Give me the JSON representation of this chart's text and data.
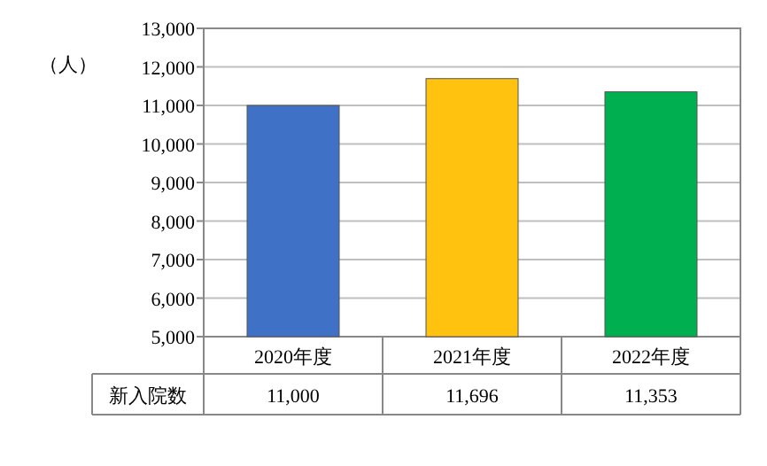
{
  "chart_data": {
    "type": "bar",
    "ylabel": "（人）",
    "categories": [
      "2020年度",
      "2021年度",
      "2022年度"
    ],
    "series": [
      {
        "name": "新入院数",
        "colors": [
          "#3f72c6",
          "#ffc20e",
          "#00b050"
        ],
        "values": [
          11000,
          11696,
          11353
        ],
        "value_labels": [
          "11,000",
          "11,696",
          "11,353"
        ]
      }
    ],
    "ylim": [
      5000,
      13000
    ],
    "yticks": [
      {
        "value": 5000,
        "label": "5,000"
      },
      {
        "value": 6000,
        "label": "6,000"
      },
      {
        "value": 7000,
        "label": "7,000"
      },
      {
        "value": 8000,
        "label": "8,000"
      },
      {
        "value": 9000,
        "label": "9,000"
      },
      {
        "value": 10000,
        "label": "10,000"
      },
      {
        "value": 11000,
        "label": "11,000"
      },
      {
        "value": 12000,
        "label": "12,000"
      },
      {
        "value": 13000,
        "label": "13,000"
      }
    ],
    "grid": "y"
  }
}
